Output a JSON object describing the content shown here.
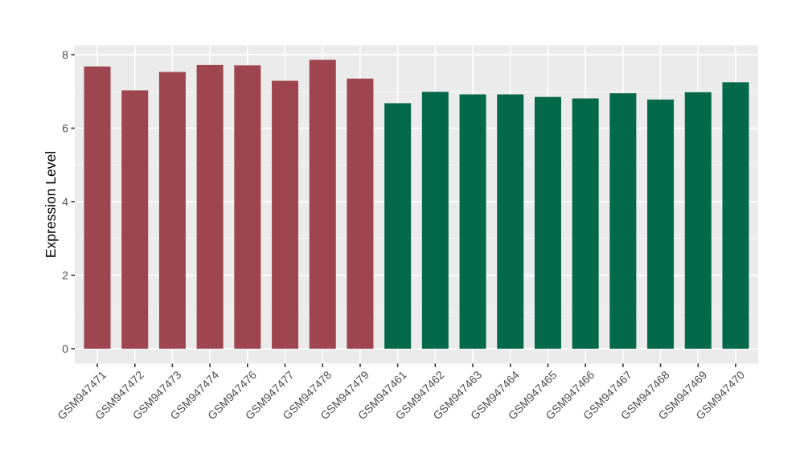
{
  "chart_data": {
    "type": "bar",
    "title": "",
    "xlabel": "",
    "ylabel": "Expression Level",
    "ylim": [
      0,
      8.25
    ],
    "yticks": [
      0,
      2,
      4,
      6,
      8
    ],
    "grid": "white horizontal major gridlines at even values, minor at odd values, white vertical gridlines at each category, gray panel",
    "legend_position": "none",
    "categories": [
      "GSM947471",
      "GSM947472",
      "GSM947473",
      "GSM947474",
      "GSM947476",
      "GSM947477",
      "GSM947478",
      "GSM947479",
      "GSM947461",
      "GSM947462",
      "GSM947463",
      "GSM947464",
      "GSM947465",
      "GSM947466",
      "GSM947467",
      "GSM947468",
      "GSM947469",
      "GSM947470"
    ],
    "values": [
      7.68,
      7.03,
      7.53,
      7.72,
      7.71,
      7.29,
      7.86,
      7.35,
      6.68,
      6.99,
      6.92,
      6.92,
      6.85,
      6.81,
      6.95,
      6.78,
      6.98,
      7.25
    ],
    "bar_colors": [
      "#9E4550",
      "#9E4550",
      "#9E4550",
      "#9E4550",
      "#9E4550",
      "#9E4550",
      "#9E4550",
      "#9E4550",
      "#046948",
      "#046948",
      "#046948",
      "#046948",
      "#046948",
      "#046948",
      "#046948",
      "#046948",
      "#046948",
      "#046948"
    ],
    "group_colors": {
      "left_8_bars": "#9E4550",
      "right_10_bars": "#046948"
    }
  },
  "style": {
    "page_bg": "#FFFFFF",
    "panel_bg": "#EBEBEB",
    "grid_major": "#FFFFFF",
    "grid_minor": "#F7F7F7",
    "tick_mark_color": "#333333",
    "tick_label_color": "#4D4D4D",
    "axis_title_color": "#000000"
  }
}
